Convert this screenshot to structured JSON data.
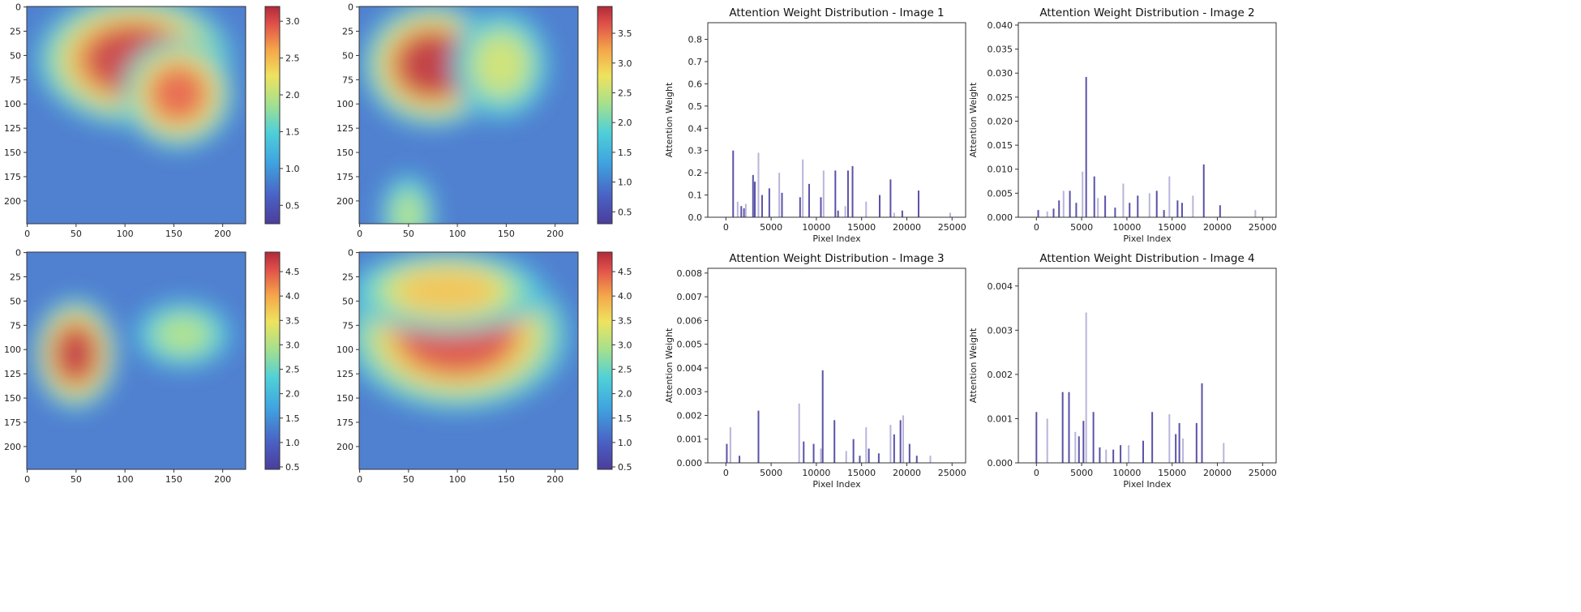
{
  "heatmaps": [
    {
      "name": "heatmap-1",
      "x_ticks": [
        "0",
        "50",
        "100",
        "150",
        "200"
      ],
      "y_ticks": [
        "0",
        "25",
        "50",
        "75",
        "100",
        "125",
        "150",
        "175",
        "200"
      ],
      "colorbar_ticks": [
        "3.0",
        "2.5",
        "2.0",
        "1.5",
        "1.0",
        "0.5"
      ],
      "colorbar_range": [
        0.25,
        3.2
      ],
      "hotspots": [
        {
          "cx": 110,
          "cy": 55,
          "rx": 70,
          "ry": 48,
          "v": 3.1
        },
        {
          "cx": 155,
          "cy": 90,
          "rx": 40,
          "ry": 40,
          "v": 2.9
        }
      ]
    },
    {
      "name": "heatmap-2",
      "x_ticks": [
        "0",
        "50",
        "100",
        "150",
        "200"
      ],
      "y_ticks": [
        "0",
        "25",
        "50",
        "75",
        "100",
        "125",
        "150",
        "175",
        "200"
      ],
      "colorbar_ticks": [
        "3.5",
        "3.0",
        "2.5",
        "2.0",
        "1.5",
        "1.0",
        "0.5"
      ],
      "colorbar_range": [
        0.3,
        3.95
      ],
      "hotspots": [
        {
          "cx": 75,
          "cy": 60,
          "rx": 50,
          "ry": 45,
          "v": 3.9
        },
        {
          "cx": 145,
          "cy": 60,
          "rx": 35,
          "ry": 40,
          "v": 2.6
        },
        {
          "cx": 50,
          "cy": 215,
          "rx": 20,
          "ry": 30,
          "v": 2.4
        }
      ]
    },
    {
      "name": "heatmap-3",
      "x_ticks": [
        "0",
        "50",
        "100",
        "150",
        "200"
      ],
      "y_ticks": [
        "0",
        "25",
        "50",
        "75",
        "100",
        "125",
        "150",
        "175",
        "200"
      ],
      "colorbar_ticks": [
        "4.5",
        "4.0",
        "3.5",
        "3.0",
        "2.5",
        "2.0",
        "1.5",
        "1.0",
        "0.5"
      ],
      "colorbar_range": [
        0.45,
        4.9
      ],
      "hotspots": [
        {
          "cx": 50,
          "cy": 105,
          "rx": 30,
          "ry": 40,
          "v": 4.8
        },
        {
          "cx": 160,
          "cy": 85,
          "rx": 35,
          "ry": 25,
          "v": 3.0
        }
      ]
    },
    {
      "name": "heatmap-4",
      "x_ticks": [
        "0",
        "50",
        "100",
        "150",
        "200"
      ],
      "y_ticks": [
        "0",
        "25",
        "50",
        "75",
        "100",
        "125",
        "150",
        "175",
        "200"
      ],
      "colorbar_ticks": [
        "4.5",
        "4.0",
        "3.5",
        "3.0",
        "2.5",
        "2.0",
        "1.5",
        "1.0",
        "0.5"
      ],
      "colorbar_range": [
        0.45,
        4.9
      ],
      "hotspots": [
        {
          "cx": 100,
          "cy": 85,
          "rx": 80,
          "ry": 55,
          "v": 4.6
        },
        {
          "cx": 90,
          "cy": 40,
          "rx": 70,
          "ry": 30,
          "v": 3.8
        }
      ]
    }
  ],
  "chart_data": [
    {
      "type": "bar",
      "name": "attention-chart-1",
      "title": "Attention Weight Distribution - Image 1",
      "xlabel": "Pixel Index",
      "ylabel": "Attention Weight",
      "xlim": [
        -2000,
        26500
      ],
      "ylim": [
        0,
        0.875
      ],
      "x_ticks": [
        "0",
        "5000",
        "10000",
        "15000",
        "20000",
        "25000"
      ],
      "y_ticks": [
        "0.0",
        "0.1",
        "0.2",
        "0.3",
        "0.4",
        "0.5",
        "0.6",
        "0.7",
        "0.8"
      ],
      "x": [
        800,
        1300,
        1700,
        2000,
        2200,
        3000,
        3200,
        3600,
        4000,
        4800,
        5900,
        6200,
        8200,
        8500,
        9200,
        10500,
        10800,
        12100,
        12400,
        13200,
        13500,
        14000,
        15500,
        17000,
        18200,
        18600,
        19500,
        21300,
        24800
      ],
      "values": [
        0.3,
        0.07,
        0.05,
        0.04,
        0.06,
        0.19,
        0.16,
        0.29,
        0.1,
        0.13,
        0.2,
        0.11,
        0.09,
        0.26,
        0.15,
        0.09,
        0.21,
        0.21,
        0.03,
        0.05,
        0.21,
        0.23,
        0.07,
        0.1,
        0.17,
        0.02,
        0.03,
        0.12,
        0.02
      ]
    },
    {
      "type": "bar",
      "name": "attention-chart-2",
      "title": "Attention Weight Distribution - Image 2",
      "xlabel": "Pixel Index",
      "ylabel": "Attention Weight",
      "xlim": [
        -2000,
        26500
      ],
      "ylim": [
        0,
        0.0405
      ],
      "x_ticks": [
        "0",
        "5000",
        "10000",
        "15000",
        "20000",
        "25000"
      ],
      "y_ticks": [
        "0.000",
        "0.005",
        "0.010",
        "0.015",
        "0.020",
        "0.025",
        "0.030",
        "0.035",
        "0.040"
      ],
      "x": [
        200,
        1200,
        1900,
        2500,
        3000,
        3700,
        4400,
        5100,
        5500,
        6400,
        6800,
        7600,
        8700,
        9600,
        10300,
        11200,
        12500,
        13300,
        14100,
        14700,
        15600,
        16100,
        17300,
        18500,
        20300,
        24200
      ],
      "values": [
        0.0015,
        0.0012,
        0.0018,
        0.0035,
        0.0055,
        0.0055,
        0.003,
        0.0095,
        0.0292,
        0.0085,
        0.004,
        0.0045,
        0.002,
        0.007,
        0.003,
        0.0045,
        0.005,
        0.0055,
        0.0015,
        0.0085,
        0.0035,
        0.003,
        0.0045,
        0.011,
        0.0025,
        0.0015
      ]
    },
    {
      "type": "bar",
      "name": "attention-chart-3",
      "title": "Attention Weight Distribution - Image 3",
      "xlabel": "Pixel Index",
      "ylabel": "Attention Weight",
      "xlim": [
        -2000,
        26500
      ],
      "ylim": [
        0,
        0.0082
      ],
      "x_ticks": [
        "0",
        "5000",
        "10000",
        "15000",
        "20000",
        "25000"
      ],
      "y_ticks": [
        "0.000",
        "0.001",
        "0.002",
        "0.003",
        "0.004",
        "0.005",
        "0.006",
        "0.007",
        "0.008"
      ],
      "x": [
        100,
        500,
        1500,
        3600,
        8100,
        8600,
        9700,
        10500,
        10700,
        12000,
        13300,
        14100,
        14800,
        15500,
        15800,
        16900,
        18200,
        18600,
        19300,
        19600,
        20300,
        21100,
        22600
      ],
      "values": [
        0.0008,
        0.0015,
        0.0003,
        0.0022,
        0.0025,
        0.0009,
        0.0008,
        0.0006,
        0.0039,
        0.0018,
        0.0005,
        0.001,
        0.0003,
        0.0015,
        0.0006,
        0.0004,
        0.0016,
        0.0012,
        0.0018,
        0.002,
        0.0008,
        0.0003,
        0.0003
      ]
    },
    {
      "type": "bar",
      "name": "attention-chart-4",
      "title": "Attention Weight Distribution - Image 4",
      "xlabel": "Pixel Index",
      "ylabel": "Attention Weight",
      "xlim": [
        -2000,
        26500
      ],
      "ylim": [
        0,
        0.0044
      ],
      "x_ticks": [
        "0",
        "5000",
        "10000",
        "15000",
        "20000",
        "25000"
      ],
      "y_ticks": [
        "0.000",
        "0.001",
        "0.002",
        "0.003",
        "0.004"
      ],
      "x": [
        0,
        1200,
        2900,
        3600,
        4300,
        4700,
        5200,
        5500,
        6300,
        7000,
        7700,
        8500,
        9300,
        10200,
        11800,
        12800,
        14700,
        15400,
        15800,
        16200,
        17700,
        18300,
        20700
      ],
      "values": [
        0.00115,
        0.001,
        0.0016,
        0.0016,
        0.0007,
        0.0006,
        0.00095,
        0.0034,
        0.00115,
        0.00035,
        0.0003,
        0.0003,
        0.0004,
        0.0004,
        0.0005,
        0.00115,
        0.0011,
        0.00065,
        0.0009,
        0.00055,
        0.0009,
        0.0018,
        0.00045
      ]
    }
  ]
}
